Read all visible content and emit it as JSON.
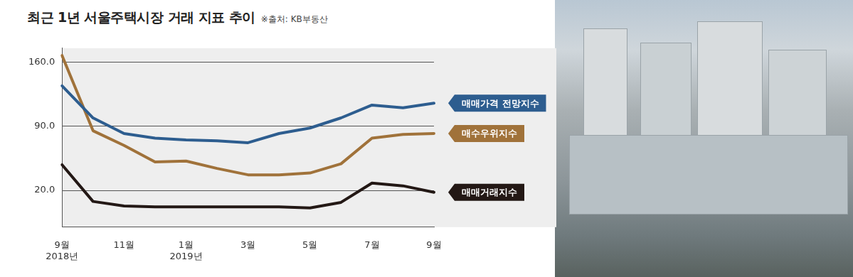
{
  "chart_data": {
    "type": "line",
    "title": "최근 1년 서울주택시장 거래 지표 추이",
    "source": "※출처: KB부동산",
    "categories": [
      [
        "9월",
        "2018년"
      ],
      null,
      "11월",
      null,
      [
        "1월",
        "2019년"
      ],
      null,
      "3월",
      null,
      "5월",
      null,
      "7월",
      null,
      "9월"
    ],
    "series": [
      {
        "name": "매매가격 전망지수",
        "color": "#2d5d8f",
        "values": [
          134,
          99,
          82,
          77,
          75,
          74,
          72,
          82,
          88,
          99,
          113,
          110,
          115
        ]
      },
      {
        "name": "매수우위지수",
        "color": "#a0723a",
        "values": [
          167,
          85,
          69,
          51,
          52,
          44,
          37,
          37,
          39,
          49,
          77,
          81,
          82
        ]
      },
      {
        "name": "매매거래지수",
        "color": "#231815",
        "values": [
          48,
          8,
          3,
          2,
          2,
          2,
          2,
          2,
          1,
          7,
          28,
          25,
          18
        ]
      }
    ],
    "ylim": [
      -20,
      175
    ],
    "yticks": [
      {
        "value": 20,
        "label": "20.0"
      },
      {
        "value": 90,
        "label": "90.0"
      },
      {
        "value": 160,
        "label": "160.0"
      }
    ],
    "grid": true
  }
}
